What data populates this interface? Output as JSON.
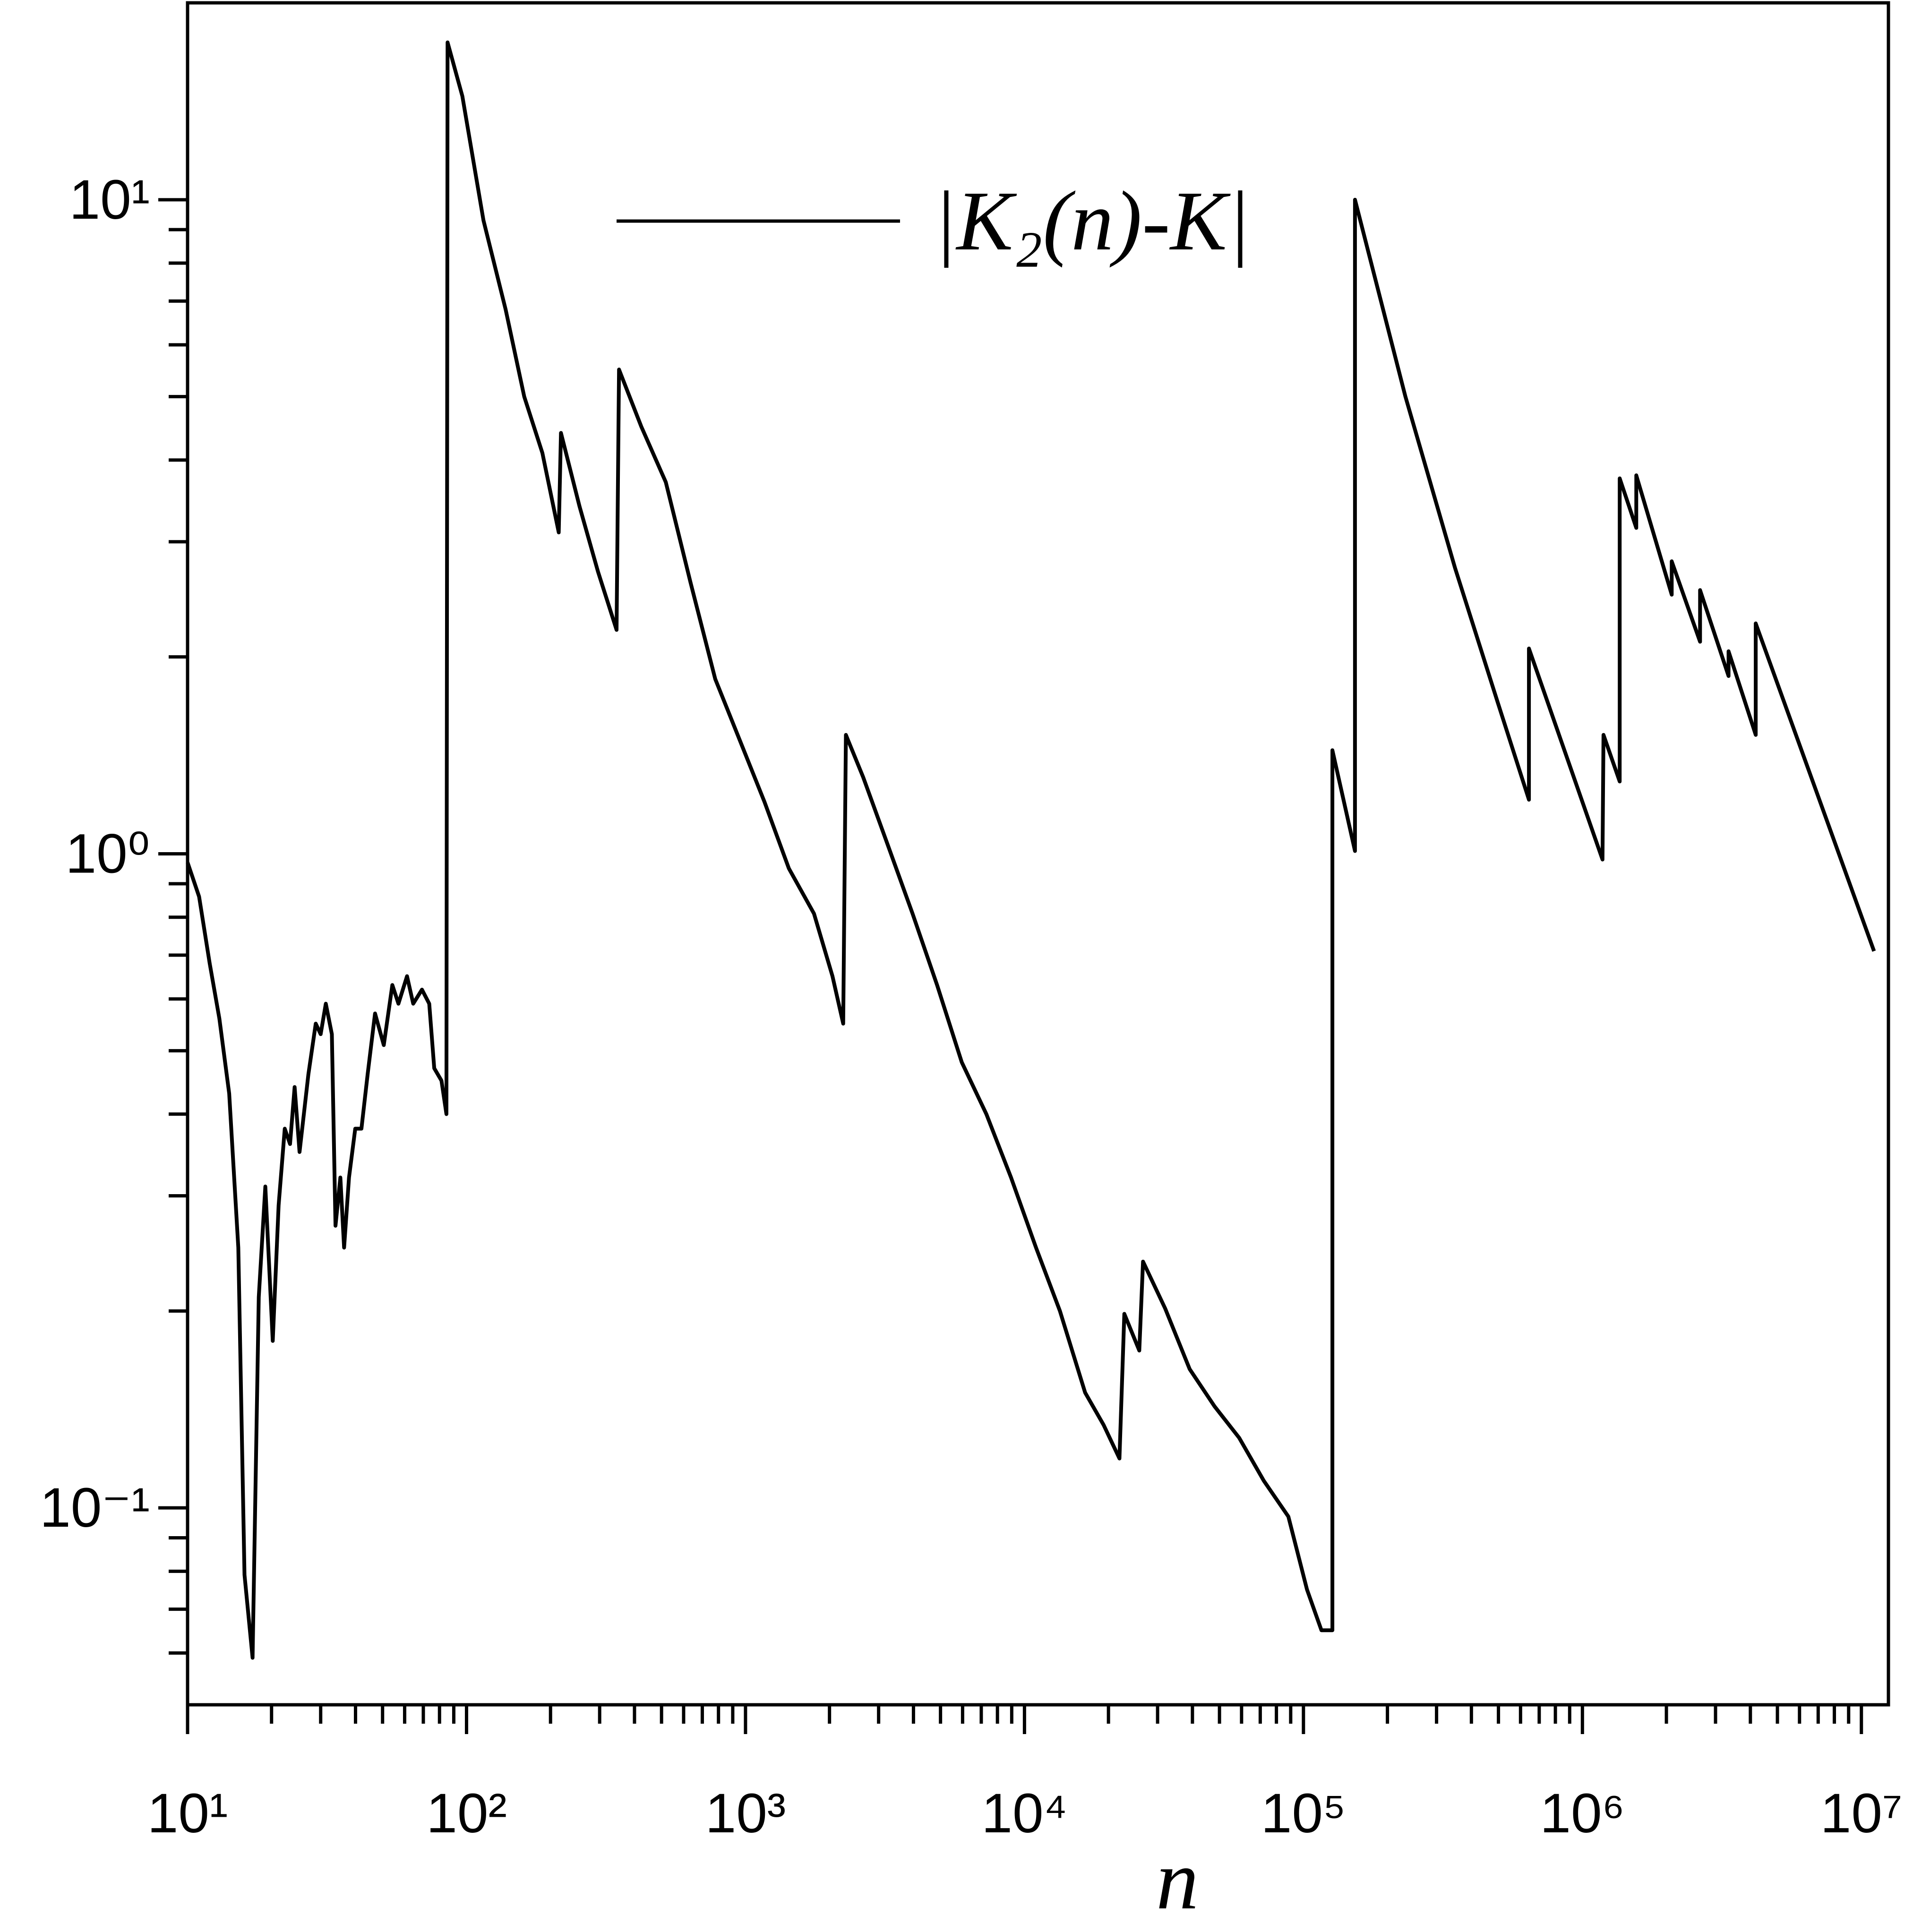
{
  "chart_data": {
    "type": "line",
    "xlabel": "n",
    "xscale": "log",
    "yscale": "log",
    "legend": "top",
    "grid": false,
    "xlim": [
      10,
      12500000
    ],
    "ylim": [
      0.05,
      20
    ],
    "xticks": [
      {
        "value": 10,
        "label": "10¹"
      },
      {
        "value": 100,
        "label": "10²"
      },
      {
        "value": 1000,
        "label": "10³"
      },
      {
        "value": 10000,
        "label": "10⁴"
      },
      {
        "value": 100000,
        "label": "10⁵"
      },
      {
        "value": 1000000,
        "label": "10⁶"
      },
      {
        "value": 10000000,
        "label": "10⁷"
      }
    ],
    "yticks": [
      {
        "value": 0.1,
        "label": "10⁻¹"
      },
      {
        "value": 1,
        "label": "10⁰"
      },
      {
        "value": 10,
        "label": "10¹"
      }
    ],
    "xminorticks": [
      20,
      30,
      40,
      50,
      60,
      70,
      80,
      90,
      200,
      300,
      400,
      500,
      600,
      700,
      800,
      900,
      2000,
      3000,
      4000,
      5000,
      6000,
      7000,
      8000,
      9000,
      20000,
      30000,
      40000,
      50000,
      60000,
      70000,
      80000,
      90000,
      200000,
      300000,
      400000,
      500000,
      600000,
      700000,
      800000,
      900000,
      2000000,
      3000000,
      4000000,
      5000000,
      6000000,
      7000000,
      8000000,
      9000000
    ],
    "yminorticks": [
      0.06,
      0.07,
      0.08,
      0.09,
      0.2,
      0.3,
      0.4,
      0.5,
      0.6,
      0.7,
      0.8,
      0.9,
      2,
      3,
      4,
      5,
      6,
      7,
      8,
      9
    ],
    "series": [
      {
        "name": "|K₂(n)-K|",
        "color": "#000000",
        "x": [
          10,
          11,
          12,
          13,
          14.1,
          15.2,
          16,
          17.1,
          18,
          19,
          20.2,
          21.2,
          22.3,
          23.3,
          24.2,
          25.2,
          27.1,
          28.8,
          30,
          31.3,
          32.9,
          33.9,
          35.3,
          36.4,
          37.9,
          39.9,
          42,
          44.2,
          47,
          50.5,
          54.2,
          57,
          61.2,
          64.4,
          69.2,
          73.5,
          76.6,
          81.3,
          84.7,
          85.5,
          96.6,
          115,
          138,
          161,
          187,
          214,
          218,
          254,
          296,
          345,
          352,
          423,
          518,
          635,
          779,
          955,
          1170,
          1430,
          1760,
          2050,
          2240,
          2290,
          2640,
          3240,
          3970,
          4860,
          5960,
          7300,
          8950,
          11000,
          13400,
          16500,
          19200,
          21900,
          22800,
          25800,
          26600,
          31900,
          39100,
          48000,
          58800,
          72100,
          88300,
          103000,
          116000,
          127000,
          127000,
          153000,
          153000,
          232000,
          349000,
          498000,
          643000,
          643000,
          1180000,
          1190000,
          1360000,
          1360000,
          1560000,
          1560000,
          2090000,
          2090000,
          2640000,
          2640000,
          3340000,
          3340000,
          4180000,
          4180000,
          11100000
        ],
        "values": [
          0.97,
          0.86,
          0.68,
          0.56,
          0.43,
          0.25,
          0.079,
          0.059,
          0.21,
          0.31,
          0.18,
          0.29,
          0.38,
          0.36,
          0.44,
          0.35,
          0.46,
          0.55,
          0.53,
          0.59,
          0.53,
          0.27,
          0.32,
          0.25,
          0.32,
          0.38,
          0.38,
          0.46,
          0.57,
          0.51,
          0.63,
          0.59,
          0.65,
          0.59,
          0.62,
          0.59,
          0.47,
          0.45,
          0.4,
          17.4,
          14.4,
          9.3,
          6.8,
          5,
          4.1,
          3.1,
          4.4,
          3.4,
          2.7,
          2.2,
          5.5,
          4.5,
          3.7,
          2.6,
          1.85,
          1.49,
          1.2,
          0.95,
          0.81,
          0.65,
          0.55,
          1.52,
          1.31,
          1.03,
          0.81,
          0.63,
          0.48,
          0.4,
          0.32,
          0.25,
          0.2,
          0.15,
          0.134,
          0.119,
          0.198,
          0.174,
          0.238,
          0.202,
          0.163,
          0.143,
          0.128,
          0.11,
          0.097,
          0.075,
          0.065,
          0.065,
          1.44,
          1.01,
          10,
          5,
          2.74,
          1.7,
          1.21,
          2.06,
          0.98,
          1.52,
          1.29,
          3.75,
          3.15,
          3.79,
          2.49,
          2.8,
          2.11,
          2.53,
          1.87,
          2.04,
          1.52,
          2.25,
          0.71
        ]
      }
    ]
  }
}
